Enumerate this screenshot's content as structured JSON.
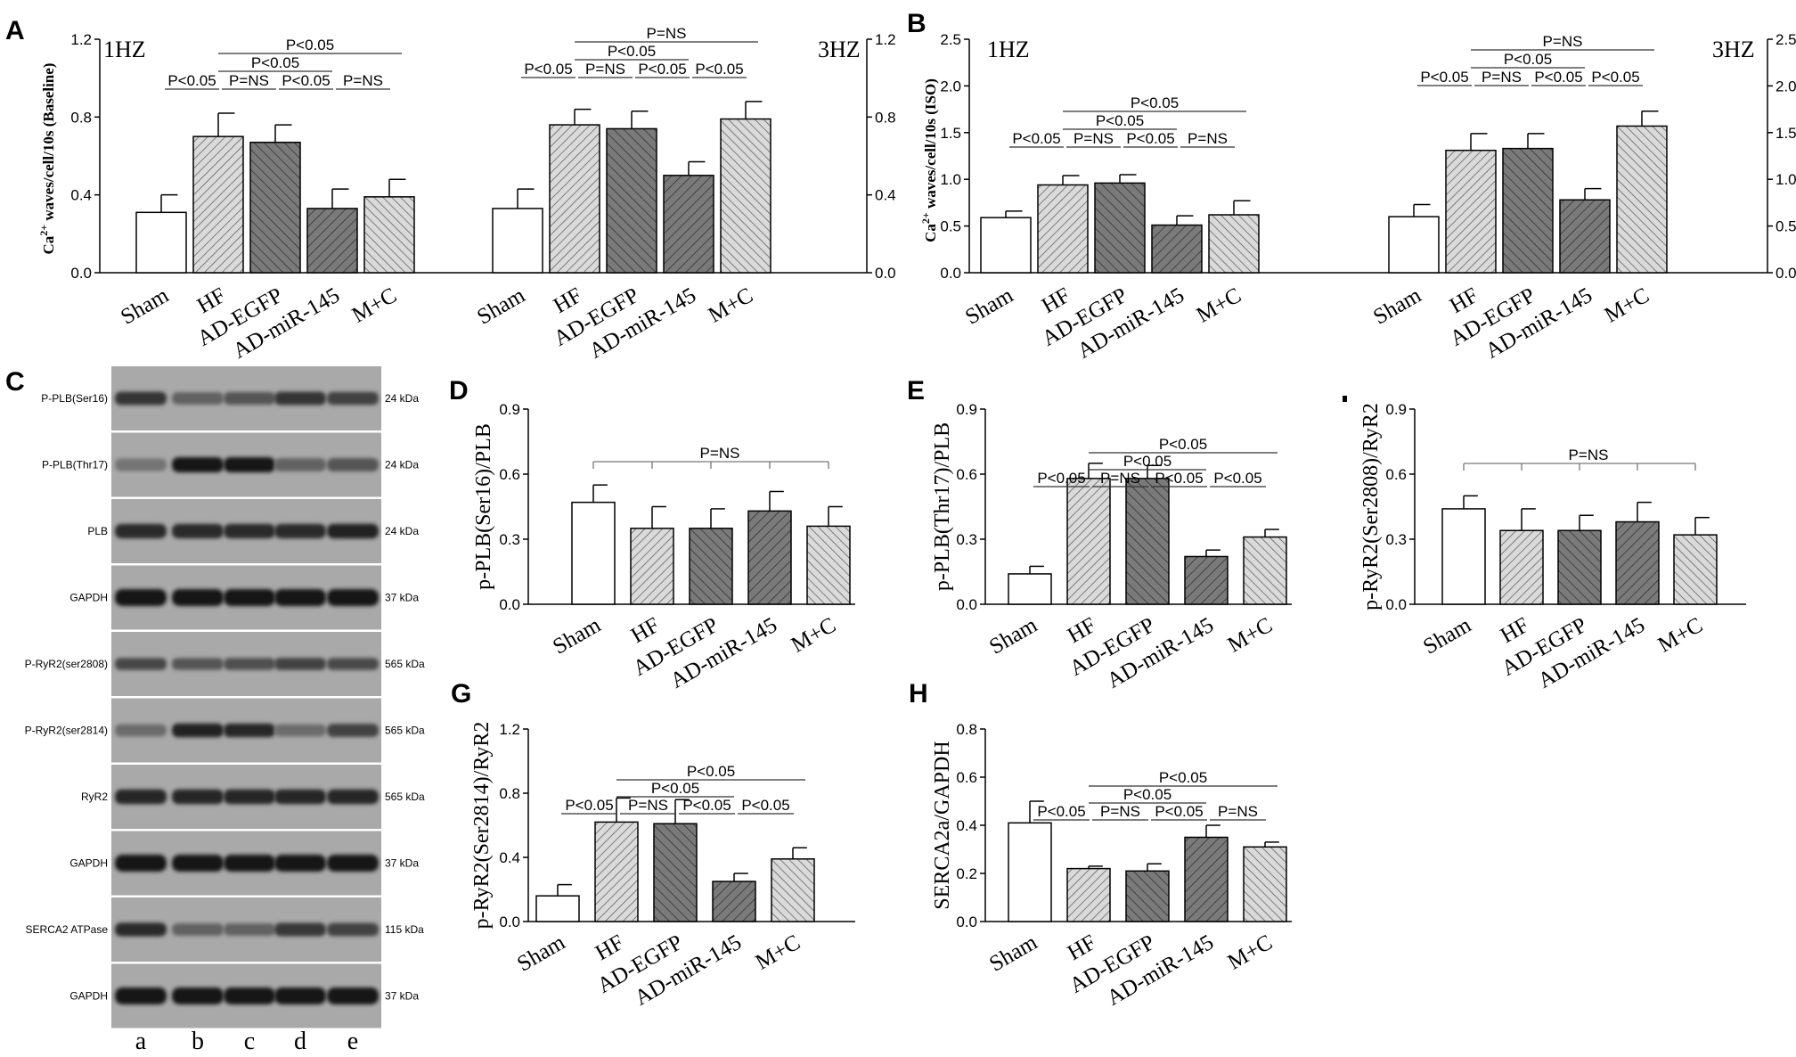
{
  "colors": {
    "axis": "#000000",
    "sham": "#ffffff",
    "light": "#d4d4d4",
    "dark": "#777777",
    "blot_bg": "#a9a9a9",
    "band": "#1c1c1c"
  },
  "fills": [
    "white",
    "hatch-light-fwd",
    "hatch-dark-back",
    "hatch-dark-fwd",
    "hatch-light-back"
  ],
  "chart_data": [
    {
      "panel": "A",
      "type": "bar",
      "ylabel_main": "Ca",
      "ylabel_sup": "2+",
      "ylabel_rest": " waves/cell/10s (Baseline)",
      "ylim": [
        0,
        1.2
      ],
      "yticks": [
        "0.0",
        "0.4",
        "0.8",
        "1.2"
      ],
      "groups": [
        {
          "title": "1HZ",
          "categories": [
            "Sham",
            "HF",
            "AD-EGFP",
            "AD-miR-145",
            "M+C"
          ],
          "values": [
            0.31,
            0.7,
            0.67,
            0.33,
            0.39
          ],
          "errors": [
            0.09,
            0.12,
            0.09,
            0.1,
            0.09
          ],
          "annotations": [
            {
              "from": 0,
              "to": 1,
              "level": 0,
              "text": "P<0.05"
            },
            {
              "from": 1,
              "to": 2,
              "level": 0,
              "text": "P=NS"
            },
            {
              "from": 2,
              "to": 3,
              "level": 0,
              "text": "P<0.05"
            },
            {
              "from": 3,
              "to": 4,
              "level": 0,
              "text": "P=NS"
            },
            {
              "from": 1,
              "to": 3,
              "level": 1,
              "text": "P<0.05"
            },
            {
              "from": 1,
              "to": 4,
              "level": 2,
              "text": "P<0.05"
            }
          ]
        },
        {
          "title": "3HZ",
          "categories": [
            "Sham",
            "HF",
            "AD-EGFP",
            "AD-miR-145",
            "M+C"
          ],
          "values": [
            0.33,
            0.76,
            0.74,
            0.5,
            0.79
          ],
          "errors": [
            0.1,
            0.08,
            0.09,
            0.07,
            0.09
          ],
          "annotations": [
            {
              "from": 0,
              "to": 1,
              "level": 0,
              "text": "P<0.05"
            },
            {
              "from": 1,
              "to": 2,
              "level": 0,
              "text": "P=NS"
            },
            {
              "from": 2,
              "to": 3,
              "level": 0,
              "text": "P<0.05"
            },
            {
              "from": 3,
              "to": 4,
              "level": 0,
              "text": "P<0.05"
            },
            {
              "from": 1,
              "to": 3,
              "level": 1,
              "text": "P<0.05"
            },
            {
              "from": 1,
              "to": 4,
              "level": 2,
              "text": "P=NS"
            }
          ]
        }
      ]
    },
    {
      "panel": "B",
      "type": "bar",
      "ylabel_main": "Ca",
      "ylabel_sup": "2+",
      "ylabel_rest": " waves/cell/10s (ISO)",
      "ylim": [
        0,
        2.5
      ],
      "yticks": [
        "0.0",
        "0.5",
        "1.0",
        "1.5",
        "2.0",
        "2.5"
      ],
      "groups": [
        {
          "title": "1HZ",
          "categories": [
            "Sham",
            "HF",
            "AD-EGFP",
            "AD-miR-145",
            "M+C"
          ],
          "values": [
            0.59,
            0.94,
            0.96,
            0.51,
            0.62
          ],
          "errors": [
            0.07,
            0.1,
            0.09,
            0.1,
            0.15
          ],
          "annotations": [
            {
              "from": 0,
              "to": 1,
              "level": 0,
              "text": "P<0.05"
            },
            {
              "from": 1,
              "to": 2,
              "level": 0,
              "text": "P=NS"
            },
            {
              "from": 2,
              "to": 3,
              "level": 0,
              "text": "P<0.05"
            },
            {
              "from": 3,
              "to": 4,
              "level": 0,
              "text": "P=NS"
            },
            {
              "from": 1,
              "to": 3,
              "level": 1,
              "text": "P<0.05"
            },
            {
              "from": 1,
              "to": 4,
              "level": 2,
              "text": "P<0.05"
            }
          ]
        },
        {
          "title": "3HZ",
          "categories": [
            "Sham",
            "HF",
            "AD-EGFP",
            "AD-miR-145",
            "M+C"
          ],
          "values": [
            0.6,
            1.31,
            1.33,
            0.78,
            1.57
          ],
          "errors": [
            0.13,
            0.18,
            0.16,
            0.12,
            0.16
          ],
          "annotations": [
            {
              "from": 0,
              "to": 1,
              "level": 0,
              "text": "P<0.05"
            },
            {
              "from": 1,
              "to": 2,
              "level": 0,
              "text": "P=NS"
            },
            {
              "from": 2,
              "to": 3,
              "level": 0,
              "text": "P<0.05"
            },
            {
              "from": 3,
              "to": 4,
              "level": 0,
              "text": "P<0.05"
            },
            {
              "from": 1,
              "to": 3,
              "level": 1,
              "text": "P<0.05"
            },
            {
              "from": 1,
              "to": 4,
              "level": 2,
              "text": "P=NS"
            }
          ]
        }
      ]
    },
    {
      "panel": "D",
      "type": "bar",
      "ylabel": "p-PLB(Ser16)/PLB",
      "ylim": [
        0,
        0.9
      ],
      "yticks": [
        "0.0",
        "0.3",
        "0.6",
        "0.9"
      ],
      "categories": [
        "Sham",
        "HF",
        "AD-EGFP",
        "AD-miR-145",
        "M+C"
      ],
      "values": [
        0.47,
        0.35,
        0.35,
        0.43,
        0.36
      ],
      "errors": [
        0.08,
        0.1,
        0.09,
        0.09,
        0.09
      ],
      "bracket": {
        "text": "P=NS"
      }
    },
    {
      "panel": "E",
      "type": "bar",
      "ylabel": "p-PLB(Thr17)/PLB",
      "ylim": [
        0,
        0.9
      ],
      "yticks": [
        "0.0",
        "0.3",
        "0.6",
        "0.9"
      ],
      "categories": [
        "Sham",
        "HF",
        "AD-EGFP",
        "AD-miR-145",
        "M+C"
      ],
      "values": [
        0.14,
        0.58,
        0.58,
        0.22,
        0.31
      ],
      "errors": [
        0.035,
        0.07,
        0.06,
        0.03,
        0.035
      ],
      "annotations": [
        {
          "from": 0,
          "to": 1,
          "level": 0,
          "text": "P<0.05"
        },
        {
          "from": 1,
          "to": 2,
          "level": 0,
          "text": "P=NS"
        },
        {
          "from": 2,
          "to": 3,
          "level": 0,
          "text": "P<0.05"
        },
        {
          "from": 3,
          "to": 4,
          "level": 0,
          "text": "P<0.05"
        },
        {
          "from": 1,
          "to": 3,
          "level": 1,
          "text": "P<0.05"
        },
        {
          "from": 1,
          "to": 4,
          "level": 2,
          "text": "P<0.05"
        }
      ]
    },
    {
      "panel": "F",
      "type": "bar",
      "ylabel": "p-RyR2(Ser2808)/RyR2",
      "ylim": [
        0,
        0.9
      ],
      "yticks": [
        "0.0",
        "0.3",
        "0.6",
        "0.9"
      ],
      "categories": [
        "Sham",
        "HF",
        "AD-EGFP",
        "AD-miR-145",
        "M+C"
      ],
      "values": [
        0.44,
        0.34,
        0.34,
        0.38,
        0.32
      ],
      "errors": [
        0.06,
        0.1,
        0.07,
        0.09,
        0.08
      ],
      "bracket": {
        "text": "P=NS"
      }
    },
    {
      "panel": "G",
      "type": "bar",
      "ylabel": "p-RyR2(Ser2814)/RyR2",
      "ylim": [
        0,
        1.2
      ],
      "yticks": [
        "0.0",
        "0.4",
        "0.8",
        "1.2"
      ],
      "categories": [
        "Sham",
        "HF",
        "AD-EGFP",
        "AD-miR-145",
        "M+C"
      ],
      "values": [
        0.16,
        0.62,
        0.61,
        0.25,
        0.39
      ],
      "errors": [
        0.07,
        0.15,
        0.15,
        0.05,
        0.07
      ],
      "annotations": [
        {
          "from": 0,
          "to": 1,
          "level": 0,
          "text": "P<0.05"
        },
        {
          "from": 1,
          "to": 2,
          "level": 0,
          "text": "P=NS"
        },
        {
          "from": 2,
          "to": 3,
          "level": 0,
          "text": "P<0.05"
        },
        {
          "from": 3,
          "to": 4,
          "level": 0,
          "text": "P<0.05"
        },
        {
          "from": 1,
          "to": 3,
          "level": 1,
          "text": "P<0.05"
        },
        {
          "from": 1,
          "to": 4,
          "level": 2,
          "text": "P<0.05"
        }
      ]
    },
    {
      "panel": "H",
      "type": "bar",
      "ylabel": "SERCA2a/GAPDH",
      "ylim": [
        0,
        0.8
      ],
      "yticks": [
        "0.0",
        "0.2",
        "0.4",
        "0.6",
        "0.8"
      ],
      "categories": [
        "Sham",
        "HF",
        "AD-EGFP",
        "AD-miR-145",
        "M+C"
      ],
      "values": [
        0.41,
        0.22,
        0.21,
        0.35,
        0.31
      ],
      "errors": [
        0.09,
        0.01,
        0.03,
        0.05,
        0.02
      ],
      "annotations": [
        {
          "from": 0,
          "to": 1,
          "level": 0,
          "text": "P<0.05"
        },
        {
          "from": 1,
          "to": 2,
          "level": 0,
          "text": "P=NS"
        },
        {
          "from": 2,
          "to": 3,
          "level": 0,
          "text": "P<0.05"
        },
        {
          "from": 3,
          "to": 4,
          "level": 0,
          "text": "P=NS"
        },
        {
          "from": 1,
          "to": 3,
          "level": 1,
          "text": "P<0.05"
        },
        {
          "from": 1,
          "to": 4,
          "level": 2,
          "text": "P<0.05"
        }
      ]
    }
  ],
  "panel_letters": {
    "A": "A",
    "B": "B",
    "C": "C",
    "D": "D",
    "E": "E",
    "G": "G",
    "H": "H"
  },
  "western_blot": {
    "lanes": [
      "a",
      "b",
      "c",
      "d",
      "e"
    ],
    "rows": [
      {
        "label": "P-PLB(Ser16)",
        "kda": "24 kDa",
        "intensity": [
          0.8,
          0.55,
          0.62,
          0.8,
          0.72
        ],
        "thickness": 0.45
      },
      {
        "label": "P-PLB(Thr17)",
        "kda": "24 kDa",
        "intensity": [
          0.45,
          0.98,
          0.98,
          0.55,
          0.62
        ],
        "thickness": 0.5
      },
      {
        "label": "PLB",
        "kda": "24 kDa",
        "intensity": [
          0.85,
          0.85,
          0.85,
          0.85,
          0.9
        ],
        "thickness": 0.5
      },
      {
        "label": "GAPDH",
        "kda": "37 kDa",
        "intensity": [
          0.95,
          0.95,
          0.95,
          0.95,
          0.95
        ],
        "thickness": 0.6
      },
      {
        "label": "P-RyR2(ser2808)",
        "kda": "565 kDa",
        "intensity": [
          0.7,
          0.62,
          0.65,
          0.72,
          0.68
        ],
        "thickness": 0.4
      },
      {
        "label": "P-RyR2(ser2814)",
        "kda": "565 kDa",
        "intensity": [
          0.5,
          0.9,
          0.88,
          0.5,
          0.72
        ],
        "thickness": 0.45
      },
      {
        "label": "RyR2",
        "kda": "565 kDa",
        "intensity": [
          0.88,
          0.88,
          0.88,
          0.88,
          0.88
        ],
        "thickness": 0.5
      },
      {
        "label": "GAPDH",
        "kda": "37 kDa",
        "intensity": [
          0.95,
          0.95,
          0.95,
          0.95,
          0.95
        ],
        "thickness": 0.6
      },
      {
        "label": "SERCA2 ATPase",
        "kda": "115 kDa",
        "intensity": [
          0.85,
          0.55,
          0.55,
          0.78,
          0.72
        ],
        "thickness": 0.45
      },
      {
        "label": "GAPDH",
        "kda": "37 kDa",
        "intensity": [
          0.95,
          0.95,
          0.95,
          0.95,
          0.95
        ],
        "thickness": 0.6
      }
    ]
  }
}
